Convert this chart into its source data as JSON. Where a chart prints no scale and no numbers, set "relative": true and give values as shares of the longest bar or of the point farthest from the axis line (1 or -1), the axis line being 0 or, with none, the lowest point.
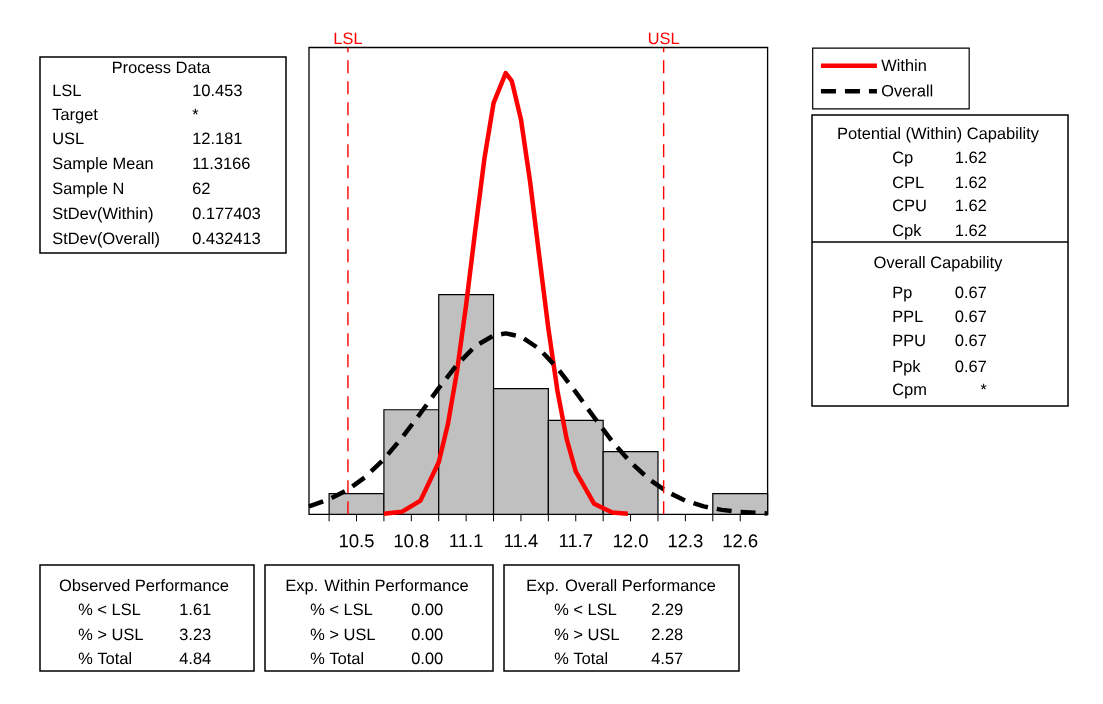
{
  "chart_data": {
    "type": "histogram",
    "relative": true,
    "bins": [
      10.35,
      10.65,
      10.95,
      11.25,
      11.55,
      11.85,
      12.15,
      12.45,
      12.75
    ],
    "series": [
      {
        "color": "#c0c0c0",
        "values": [
          0.047,
          0.237,
          0.498,
          0.285,
          0.213,
          0.142,
          0,
          0.047
        ]
      },
      {
        "name": "Within",
        "type": "line",
        "color": "#ff0000",
        "line_style": "solid",
        "x": [
          10.65,
          10.75,
          10.85,
          10.95,
          11.0,
          11.05,
          11.1,
          11.15,
          11.2,
          11.25,
          11.3166,
          11.35,
          11.4,
          11.45,
          11.5,
          11.55,
          11.6,
          11.65,
          11.7,
          11.8,
          11.9,
          11.985
        ],
        "values": [
          0.001,
          0.006,
          0.031,
          0.118,
          0.204,
          0.324,
          0.475,
          0.644,
          0.806,
          0.932,
          1,
          0.982,
          0.895,
          0.754,
          0.586,
          0.421,
          0.279,
          0.171,
          0.097,
          0.024,
          0.004,
          0.001
        ]
      },
      {
        "name": "Overall",
        "type": "line",
        "color": "#000000",
        "line_style": "dashed",
        "x": [
          10.24,
          10.35,
          10.45,
          10.55,
          10.65,
          10.75,
          10.85,
          10.95,
          11.05,
          11.15,
          11.25,
          11.3166,
          11.4,
          11.5,
          11.6,
          11.7,
          11.8,
          11.9,
          12.0,
          12.1,
          12.2,
          12.3,
          12.4,
          12.5,
          12.6,
          12.75
        ],
        "values": [
          0.018,
          0.034,
          0.055,
          0.085,
          0.125,
          0.174,
          0.229,
          0.286,
          0.339,
          0.381,
          0.405,
          0.41,
          0.403,
          0.375,
          0.331,
          0.277,
          0.22,
          0.165,
          0.118,
          0.08,
          0.051,
          0.031,
          0.018,
          0.01,
          0.005,
          0.002
        ]
      }
    ],
    "xlim": [
      10.24,
      12.75
    ],
    "xticks": [
      {
        "value": 10.35,
        "label": null
      },
      10.5,
      {
        "value": 10.65,
        "label": null
      },
      10.8,
      {
        "value": 10.95,
        "label": null
      },
      11.1,
      {
        "value": 11.25,
        "label": null
      },
      11.4,
      {
        "value": 11.55,
        "label": null
      },
      11.7,
      {
        "value": 11.85,
        "label": null
      },
      {
        "value": 12.0,
        "label": "12.0"
      },
      {
        "value": 12.15,
        "label": null
      },
      12.3,
      {
        "value": 12.45,
        "label": null
      },
      12.6
    ],
    "ref_lines": [
      {
        "axis": "x",
        "value": 10.453,
        "label": "LSL",
        "color": "#ff0000",
        "line_style": "dashed"
      },
      {
        "axis": "x",
        "value": 12.181,
        "label": "USL",
        "color": "#ff0000",
        "line_style": "dashed"
      }
    ],
    "legend": "top right",
    "annotations": [
      "Process Data",
      "LSL",
      "10.453",
      "Target",
      "*",
      "USL",
      "12.181",
      "Sample Mean",
      "11.3166",
      "Sample N",
      "62",
      "StDev(Within)",
      "0.177403",
      "StDev(Overall)",
      "0.432413",
      "Potential (Within) Capability",
      "Cp",
      "1.62",
      "CPL",
      "1.62",
      "CPU",
      "1.62",
      "Cpk",
      "1.62",
      "Overall Capability",
      "Pp",
      "0.67",
      "PPL",
      "0.67",
      "PPU",
      "0.67",
      "Ppk",
      "0.67",
      "Cpm",
      "*",
      "Observed Performance",
      "% < LSL",
      "1.61",
      "% > USL",
      "3.23",
      "% Total",
      "4.84",
      "Exp. Within Performance",
      "% < LSL",
      "0.00",
      "% > USL",
      "0.00",
      "% Total",
      "0.00",
      "Exp. Overall Performance",
      "% < LSL",
      "2.29",
      "% > USL",
      "2.28",
      "% Total",
      "4.57"
    ]
  }
}
